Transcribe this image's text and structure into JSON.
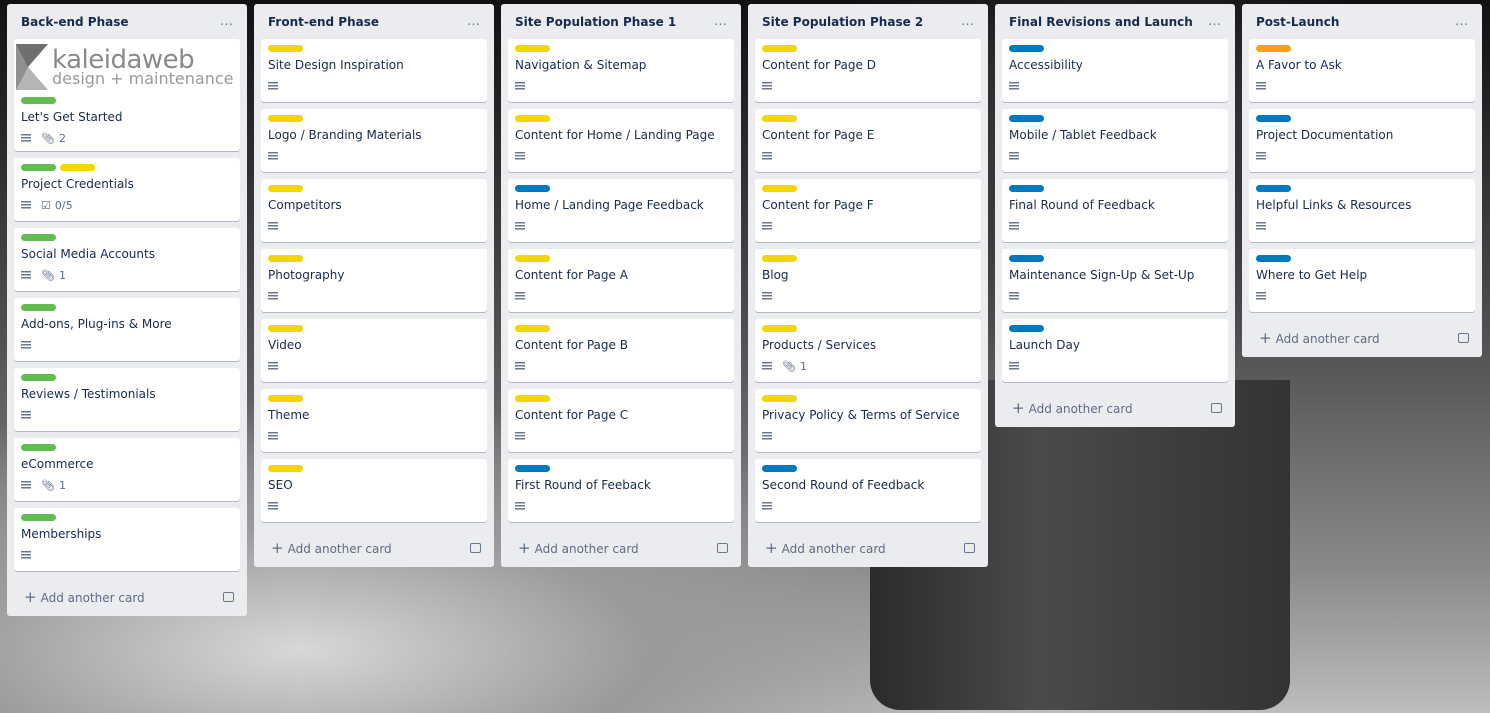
{
  "colors": {
    "green": "#61bd4f",
    "yellow": "#f2d600",
    "blue": "#0079bf",
    "orange": "#ff9f1a"
  },
  "logo": {
    "line1": "kaleidaweb",
    "line2": "design + maintenance"
  },
  "add_card_label": "Add another card",
  "more_icon": "…",
  "lists": [
    {
      "title": "Back-end Phase",
      "cards": [
        {
          "labels": [
            "green"
          ],
          "title": "Let's Get Started",
          "cover": "logo",
          "attachments": "2"
        },
        {
          "labels": [
            "green",
            "yellow"
          ],
          "title": "Project Credentials",
          "checklist": "0/5"
        },
        {
          "labels": [
            "green"
          ],
          "title": "Social Media Accounts",
          "attachments": "1"
        },
        {
          "labels": [
            "green"
          ],
          "title": "Add-ons, Plug-ins & More"
        },
        {
          "labels": [
            "green"
          ],
          "title": "Reviews / Testimonials"
        },
        {
          "labels": [
            "green"
          ],
          "title": "eCommerce",
          "attachments": "1"
        },
        {
          "labels": [
            "green"
          ],
          "title": "Memberships"
        }
      ]
    },
    {
      "title": "Front-end Phase",
      "cards": [
        {
          "labels": [
            "yellow"
          ],
          "title": "Site Design Inspiration"
        },
        {
          "labels": [
            "yellow"
          ],
          "title": "Logo / Branding Materials"
        },
        {
          "labels": [
            "yellow"
          ],
          "title": "Competitors"
        },
        {
          "labels": [
            "yellow"
          ],
          "title": "Photography"
        },
        {
          "labels": [
            "yellow"
          ],
          "title": "Video"
        },
        {
          "labels": [
            "yellow"
          ],
          "title": "Theme"
        },
        {
          "labels": [
            "yellow"
          ],
          "title": "SEO"
        }
      ]
    },
    {
      "title": "Site Population Phase 1",
      "cards": [
        {
          "labels": [
            "yellow"
          ],
          "title": "Navigation & Sitemap"
        },
        {
          "labels": [
            "yellow"
          ],
          "title": "Content for Home / Landing Page"
        },
        {
          "labels": [
            "blue"
          ],
          "title": "Home / Landing Page Feedback"
        },
        {
          "labels": [
            "yellow"
          ],
          "title": "Content for Page A"
        },
        {
          "labels": [
            "yellow"
          ],
          "title": "Content for Page B"
        },
        {
          "labels": [
            "yellow"
          ],
          "title": "Content for Page C"
        },
        {
          "labels": [
            "blue"
          ],
          "title": "First Round of Feeback"
        }
      ]
    },
    {
      "title": "Site Population Phase 2",
      "cards": [
        {
          "labels": [
            "yellow"
          ],
          "title": "Content for Page D"
        },
        {
          "labels": [
            "yellow"
          ],
          "title": "Content for Page E"
        },
        {
          "labels": [
            "yellow"
          ],
          "title": "Content for Page F"
        },
        {
          "labels": [
            "yellow"
          ],
          "title": "Blog"
        },
        {
          "labels": [
            "yellow"
          ],
          "title": "Products / Services",
          "attachments": "1"
        },
        {
          "labels": [
            "yellow"
          ],
          "title": "Privacy Policy & Terms of Service"
        },
        {
          "labels": [
            "blue"
          ],
          "title": "Second Round of Feedback"
        }
      ]
    },
    {
      "title": "Final Revisions and Launch",
      "cards": [
        {
          "labels": [
            "blue"
          ],
          "title": "Accessibility"
        },
        {
          "labels": [
            "blue"
          ],
          "title": "Mobile / Tablet Feedback"
        },
        {
          "labels": [
            "blue"
          ],
          "title": "Final Round of Feedback"
        },
        {
          "labels": [
            "blue"
          ],
          "title": "Maintenance Sign-Up & Set-Up"
        },
        {
          "labels": [
            "blue"
          ],
          "title": "Launch Day"
        }
      ]
    },
    {
      "title": "Post-Launch",
      "cards": [
        {
          "labels": [
            "orange"
          ],
          "title": "A Favor to Ask"
        },
        {
          "labels": [
            "blue"
          ],
          "title": "Project Documentation"
        },
        {
          "labels": [
            "blue"
          ],
          "title": "Helpful Links & Resources"
        },
        {
          "labels": [
            "blue"
          ],
          "title": "Where to Get Help"
        }
      ]
    }
  ]
}
